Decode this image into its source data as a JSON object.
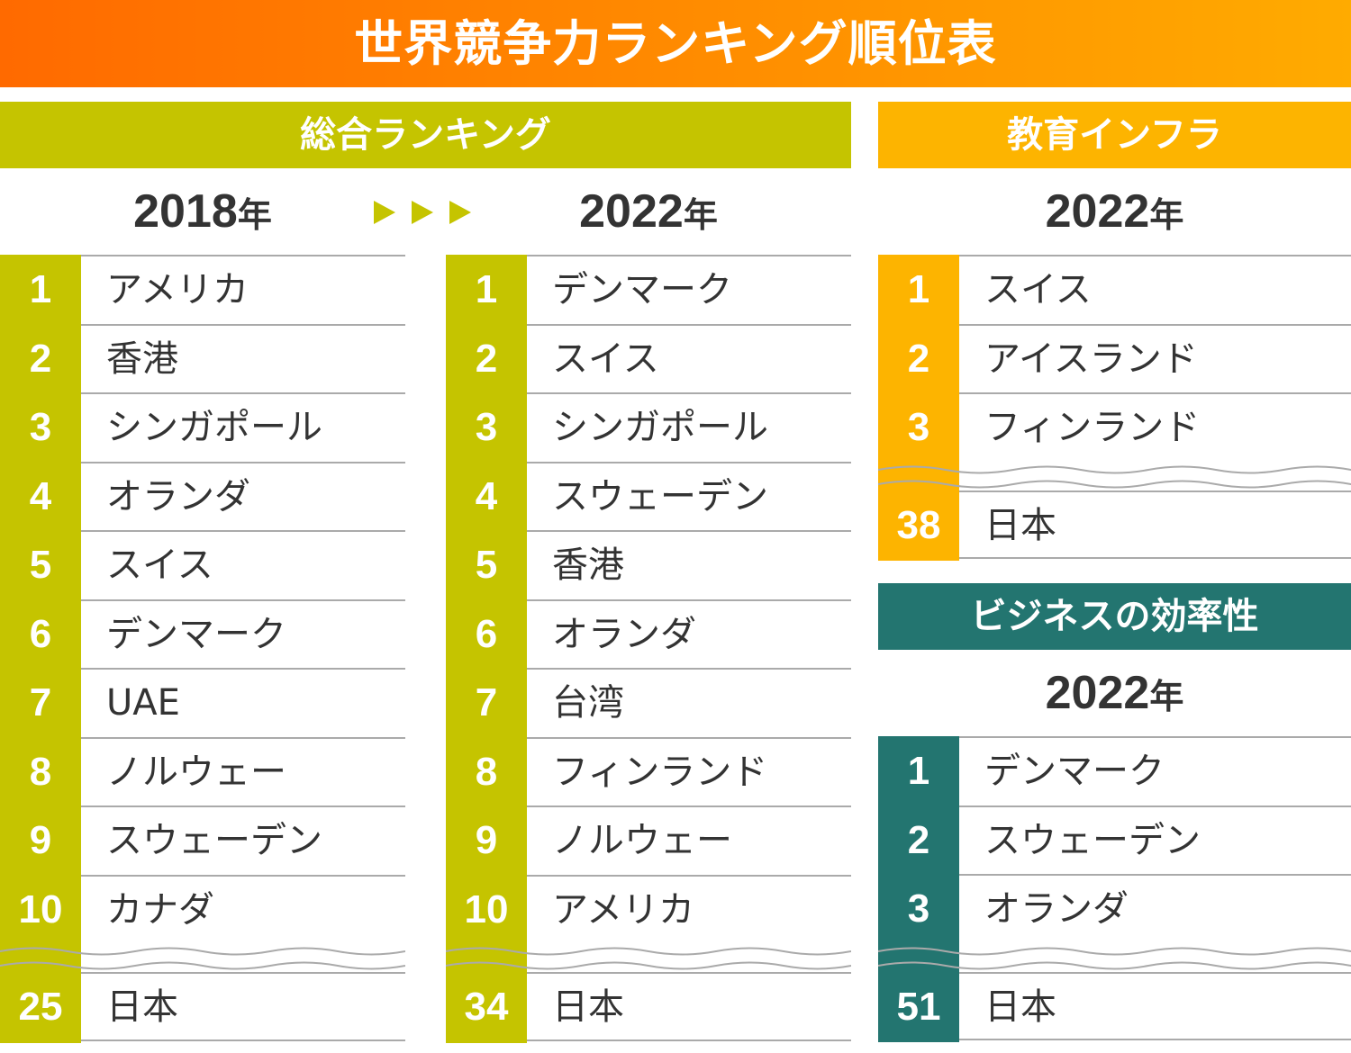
{
  "title": "世界競争力ランキング順位表",
  "colors": {
    "overall": "#c5c400",
    "education": "#fdb400",
    "business": "#237570"
  },
  "icons": [
    "play-arrow-icon",
    "play-arrow-icon",
    "play-arrow-icon"
  ],
  "overall": {
    "header": "総合ランキング",
    "tables": [
      {
        "year": "2018",
        "nen": "年",
        "rows": [
          {
            "rank": "1",
            "name": "アメリカ"
          },
          {
            "rank": "2",
            "name": "香港"
          },
          {
            "rank": "3",
            "name": "シンガポール"
          },
          {
            "rank": "4",
            "name": "オランダ"
          },
          {
            "rank": "5",
            "name": "スイス"
          },
          {
            "rank": "6",
            "name": "デンマーク"
          },
          {
            "rank": "7",
            "name": "UAE"
          },
          {
            "rank": "8",
            "name": "ノルウェー"
          },
          {
            "rank": "9",
            "name": "スウェーデン"
          },
          {
            "rank": "10",
            "name": "カナダ"
          }
        ],
        "japan": {
          "rank": "25",
          "name": "日本"
        }
      },
      {
        "year": "2022",
        "nen": "年",
        "rows": [
          {
            "rank": "1",
            "name": "デンマーク"
          },
          {
            "rank": "2",
            "name": "スイス"
          },
          {
            "rank": "3",
            "name": "シンガポール"
          },
          {
            "rank": "4",
            "name": "スウェーデン"
          },
          {
            "rank": "5",
            "name": "香港"
          },
          {
            "rank": "6",
            "name": "オランダ"
          },
          {
            "rank": "7",
            "name": "台湾"
          },
          {
            "rank": "8",
            "name": "フィンランド"
          },
          {
            "rank": "9",
            "name": "ノルウェー"
          },
          {
            "rank": "10",
            "name": "アメリカ"
          }
        ],
        "japan": {
          "rank": "34",
          "name": "日本"
        }
      }
    ]
  },
  "education": {
    "header": "教育インフラ",
    "year": "2022",
    "nen": "年",
    "rows": [
      {
        "rank": "1",
        "name": "スイス"
      },
      {
        "rank": "2",
        "name": "アイスランド"
      },
      {
        "rank": "3",
        "name": "フィンランド"
      }
    ],
    "japan": {
      "rank": "38",
      "name": "日本"
    }
  },
  "business": {
    "header": "ビジネスの効率性",
    "year": "2022",
    "nen": "年",
    "rows": [
      {
        "rank": "1",
        "name": "デンマーク"
      },
      {
        "rank": "2",
        "name": "スウェーデン"
      },
      {
        "rank": "3",
        "name": "オランダ"
      }
    ],
    "japan": {
      "rank": "51",
      "name": "日本"
    }
  }
}
